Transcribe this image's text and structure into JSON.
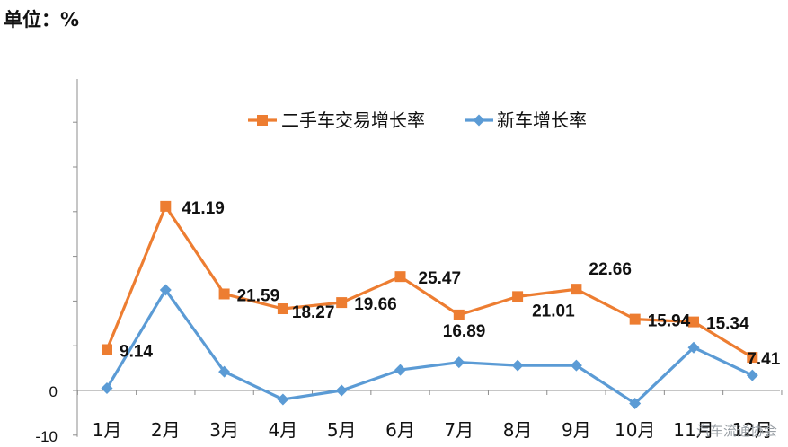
{
  "unit_label": "单位：%",
  "watermark": "汽车流通协会",
  "chart_data": {
    "type": "line",
    "title": "",
    "xlabel": "",
    "ylabel": "",
    "categories": [
      "1月",
      "2月",
      "3月",
      "4月",
      "5月",
      "6月",
      "7月",
      "8月",
      "9月",
      "10月",
      "11月",
      "12月"
    ],
    "ylim": [
      -10,
      70
    ],
    "y_tick_labels": [
      "0",
      "-10"
    ],
    "grid": false,
    "legend_position": "top-right",
    "series": [
      {
        "name": "二手车交易增长率",
        "color": "#ED7D31",
        "marker": "square",
        "values": [
          9.14,
          41.19,
          21.59,
          18.27,
          19.66,
          25.47,
          16.89,
          21.01,
          22.66,
          15.94,
          15.34,
          7.41
        ],
        "labels": [
          "9.14",
          "41.19",
          "21.59",
          "18.27",
          "19.66",
          "25.47",
          "16.89",
          "21.01",
          "22.66",
          "15.94",
          "15.34",
          "7.41"
        ]
      },
      {
        "name": "新车增长率",
        "color": "#5B9BD5",
        "marker": "diamond",
        "values": [
          0.5,
          22.5,
          4.2,
          -2.0,
          0.0,
          4.6,
          6.3,
          5.6,
          5.6,
          -2.9,
          9.6,
          3.4
        ]
      }
    ]
  }
}
